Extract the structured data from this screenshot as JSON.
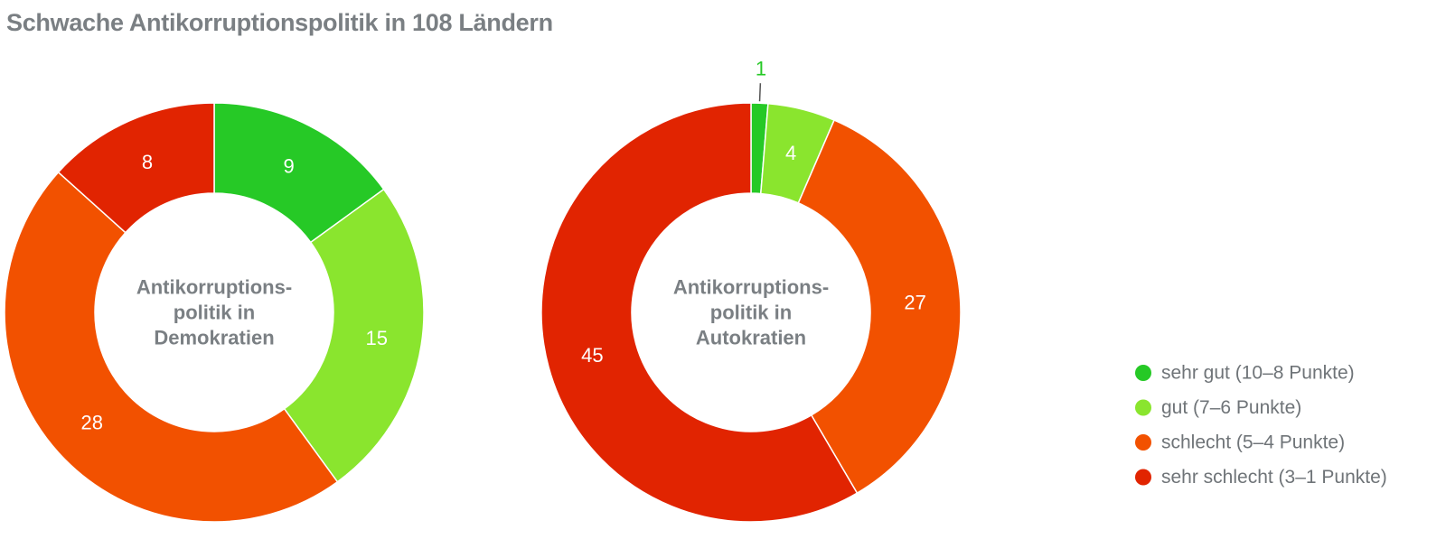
{
  "chart_data": {
    "type": "donut",
    "title": "Schwache Antikorruptionspolitik in 108 Ländern",
    "legend": {
      "placement": "right",
      "items": [
        {
          "key": "sehr_gut",
          "label": "sehr gut (10–8 Punkte)",
          "color": "#26c926"
        },
        {
          "key": "gut",
          "label": "gut (7–6 Punkte)",
          "color": "#8ae52e"
        },
        {
          "key": "schlecht",
          "label": "schlecht (5–4 Punkte)",
          "color": "#f25100"
        },
        {
          "key": "sehr_schlecht",
          "label": "sehr schlecht (3–1 Punkte)",
          "color": "#e12401"
        }
      ]
    },
    "charts": [
      {
        "center_label": [
          "Antikorruptions-",
          "politik in",
          "Demokratien"
        ],
        "slices": [
          {
            "key": "sehr_gut",
            "value": 9
          },
          {
            "key": "gut",
            "value": 15
          },
          {
            "key": "schlecht",
            "value": 28
          },
          {
            "key": "sehr_schlecht",
            "value": 8
          }
        ]
      },
      {
        "center_label": [
          "Antikorruptions-",
          "politik in",
          "Autokratien"
        ],
        "slices": [
          {
            "key": "sehr_gut",
            "value": 1
          },
          {
            "key": "gut",
            "value": 4
          },
          {
            "key": "schlecht",
            "value": 27
          },
          {
            "key": "sehr_schlecht",
            "value": 45
          }
        ]
      }
    ]
  }
}
